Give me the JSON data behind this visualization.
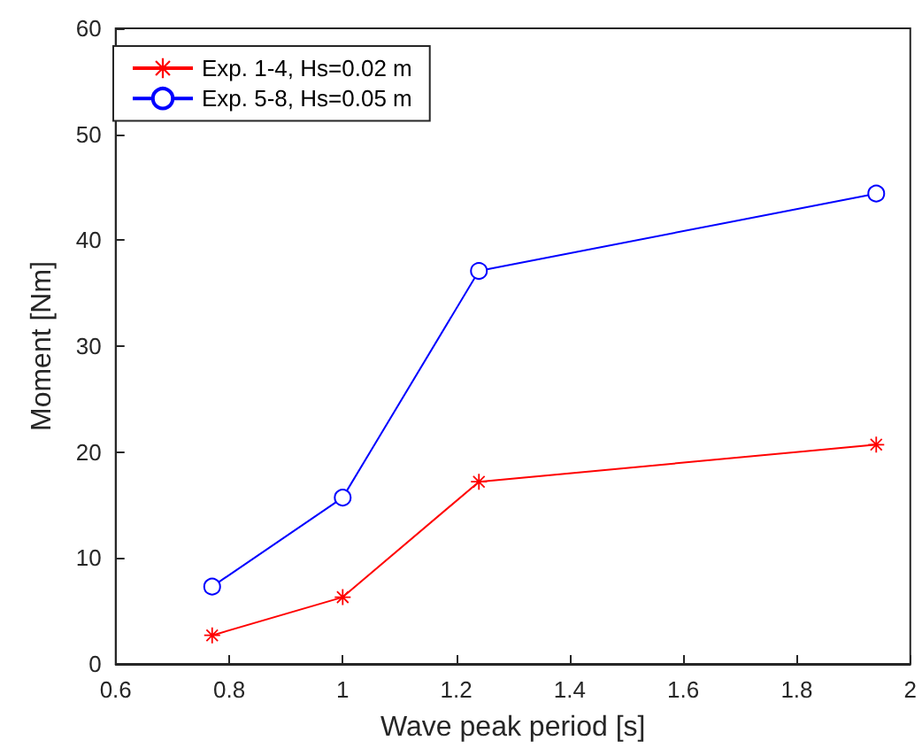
{
  "chart_data": {
    "type": "line",
    "xlabel": "Wave peak period [s]",
    "ylabel": "Moment [Nm]",
    "xlim": [
      0.6,
      2
    ],
    "xticks": [
      0.6,
      0.8,
      1,
      1.2,
      1.4,
      1.6,
      1.8,
      2
    ],
    "ylim": [
      0,
      60
    ],
    "yticks": [
      0,
      10,
      20,
      30,
      40,
      50,
      60
    ],
    "grid": false,
    "legend": "top left",
    "x": [
      0.77,
      1,
      1.24,
      1.94
    ],
    "series": [
      {
        "name": "Exp. 1-4, Hs=0.02 m",
        "color": "#ff0000",
        "marker": "star",
        "values": [
          2.7,
          6.3,
          17.2,
          20.7
        ]
      },
      {
        "name": "Exp. 5-8, Hs=0.05 m",
        "color": "#0000ff",
        "marker": "circle",
        "values": [
          7.3,
          15.7,
          37.1,
          44.4
        ]
      }
    ]
  }
}
